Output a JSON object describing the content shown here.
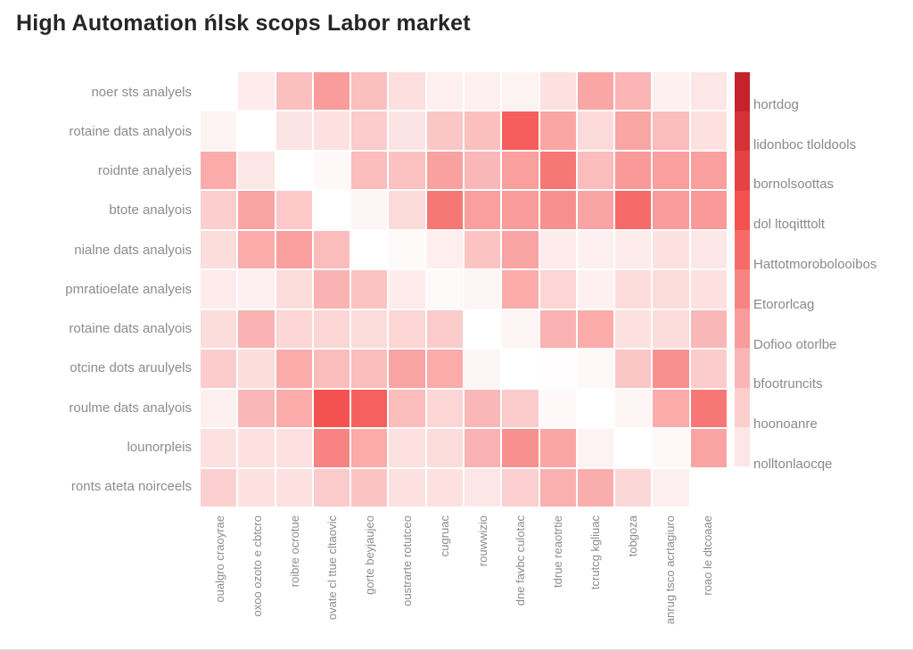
{
  "title": "High Automation ńlsk scops Labor market",
  "chart_data": {
    "type": "heatmap",
    "title": "High Automation ńlsk scops Labor market",
    "rows": [
      "noer sts analyels",
      "rotaine dats analyois",
      "roidnte analyeis",
      "btote analyois",
      "nialne dats analyois",
      "pmratioelate analyeis",
      "rotaine dats analyois",
      "otcine dots aruulyels",
      "roulme dats analyois",
      "lounorpleis",
      "ronts ateta noirceels"
    ],
    "columns": [
      "oualgro craoyrae",
      "oxoo ozoto e cbtcro",
      "roibre ocrotue",
      "ovate cl ttue cltaovic",
      "gorte beyjaujeo",
      "oustrarte rotutceo",
      "cugruac",
      "rouwwizio",
      "dne favbc culotac",
      "tdrue reaotrtie",
      "tcrutcg kgliuac",
      "tobgoza",
      "anrug tsco acrtagiuro",
      "roao le dtcoaae"
    ],
    "legend_labels": [
      "hortdog",
      "lidonboc tloldools",
      "bornolsoottas",
      "dol ltoqitttolt",
      "Hattotmorobolooibos",
      "Etororlcag",
      "Dofioo otorlbe",
      "bfootruncits",
      "hoonoanre",
      "nolltonlaocqe"
    ],
    "values": [
      [
        0.0,
        0.08,
        0.26,
        0.4,
        0.26,
        0.13,
        0.06,
        0.06,
        0.05,
        0.12,
        0.36,
        0.3,
        0.06,
        0.1
      ],
      [
        0.05,
        0.0,
        0.11,
        0.12,
        0.21,
        0.11,
        0.23,
        0.26,
        0.65,
        0.36,
        0.15,
        0.36,
        0.27,
        0.12
      ],
      [
        0.34,
        0.1,
        0.0,
        0.03,
        0.27,
        0.25,
        0.38,
        0.29,
        0.39,
        0.55,
        0.27,
        0.41,
        0.39,
        0.39
      ],
      [
        0.2,
        0.37,
        0.22,
        0.0,
        0.04,
        0.15,
        0.55,
        0.39,
        0.4,
        0.45,
        0.37,
        0.6,
        0.4,
        0.41
      ],
      [
        0.14,
        0.34,
        0.39,
        0.27,
        0.0,
        0.02,
        0.07,
        0.24,
        0.37,
        0.08,
        0.06,
        0.08,
        0.12,
        0.1
      ],
      [
        0.08,
        0.06,
        0.14,
        0.31,
        0.24,
        0.08,
        0.02,
        0.04,
        0.34,
        0.17,
        0.06,
        0.14,
        0.14,
        0.12
      ],
      [
        0.14,
        0.31,
        0.17,
        0.17,
        0.14,
        0.17,
        0.21,
        0.0,
        0.04,
        0.31,
        0.34,
        0.12,
        0.14,
        0.29
      ],
      [
        0.21,
        0.14,
        0.34,
        0.27,
        0.27,
        0.37,
        0.34,
        0.04,
        0.0,
        0.01,
        0.03,
        0.23,
        0.45,
        0.21
      ],
      [
        0.06,
        0.29,
        0.34,
        0.7,
        0.64,
        0.27,
        0.17,
        0.29,
        0.21,
        0.03,
        0.0,
        0.04,
        0.34,
        0.55
      ],
      [
        0.12,
        0.12,
        0.12,
        0.5,
        0.34,
        0.12,
        0.14,
        0.31,
        0.45,
        0.36,
        0.05,
        0.0,
        0.03,
        0.37
      ],
      [
        0.19,
        0.12,
        0.12,
        0.21,
        0.24,
        0.12,
        0.12,
        0.1,
        0.19,
        0.32,
        0.33,
        0.16,
        0.06,
        0.0
      ]
    ],
    "value_range": [
      0,
      1
    ],
    "colors": {
      "low": "#ffffff",
      "mid": "#f45250",
      "high": "#c5222c",
      "mid_point": 0.7
    },
    "colorbar": {
      "position": "right",
      "steps": 11,
      "orientation": "vertical"
    },
    "grid": false,
    "legend_position": "right"
  }
}
